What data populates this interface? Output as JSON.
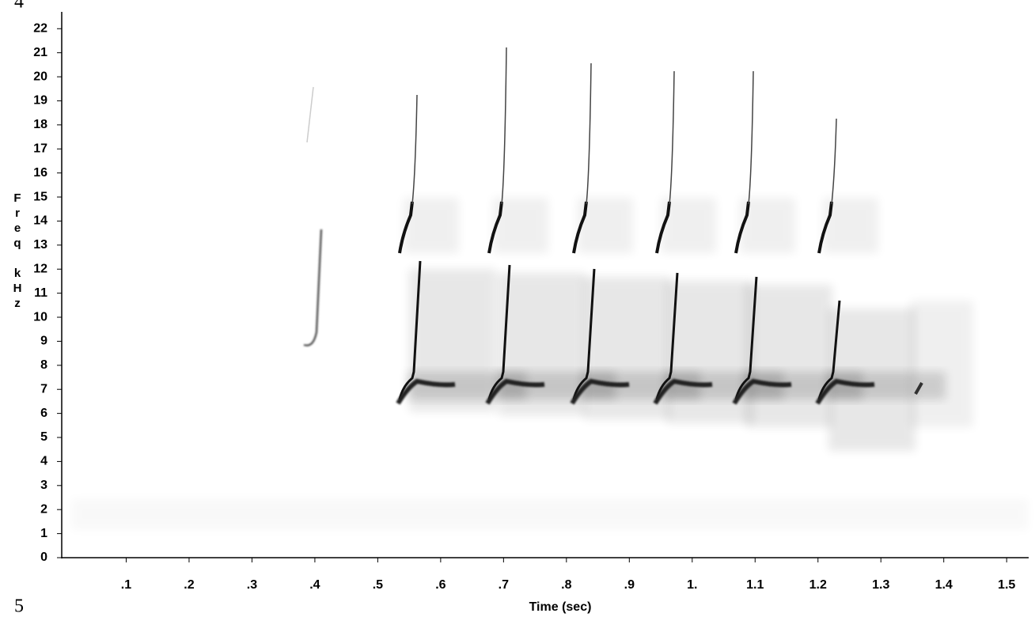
{
  "chart_data": {
    "type": "spectrogram",
    "x_label": "Time (sec)",
    "y_label": "Freq kHz",
    "xlim": [
      0,
      1.535
    ],
    "ylim": [
      0,
      22.7
    ],
    "xticks": [
      {
        "value": 0.1,
        "label": ".1"
      },
      {
        "value": 0.2,
        "label": ".2"
      },
      {
        "value": 0.3,
        "label": ".3"
      },
      {
        "value": 0.4,
        "label": ".4"
      },
      {
        "value": 0.5,
        "label": ".5"
      },
      {
        "value": 0.6,
        "label": ".6"
      },
      {
        "value": 0.7,
        "label": ".7"
      },
      {
        "value": 0.8,
        "label": ".8"
      },
      {
        "value": 0.9,
        "label": ".9"
      },
      {
        "value": 1,
        "label": "1."
      },
      1.1,
      1.2,
      1.3,
      1.4,
      1.5
    ],
    "yticks": [
      0,
      1,
      2,
      3,
      4,
      5,
      6,
      7,
      8,
      9,
      10,
      11,
      12,
      13,
      14,
      15,
      16,
      17,
      18,
      19,
      20,
      21,
      22
    ],
    "corner_labels": [
      "4",
      "5"
    ]
  }
}
